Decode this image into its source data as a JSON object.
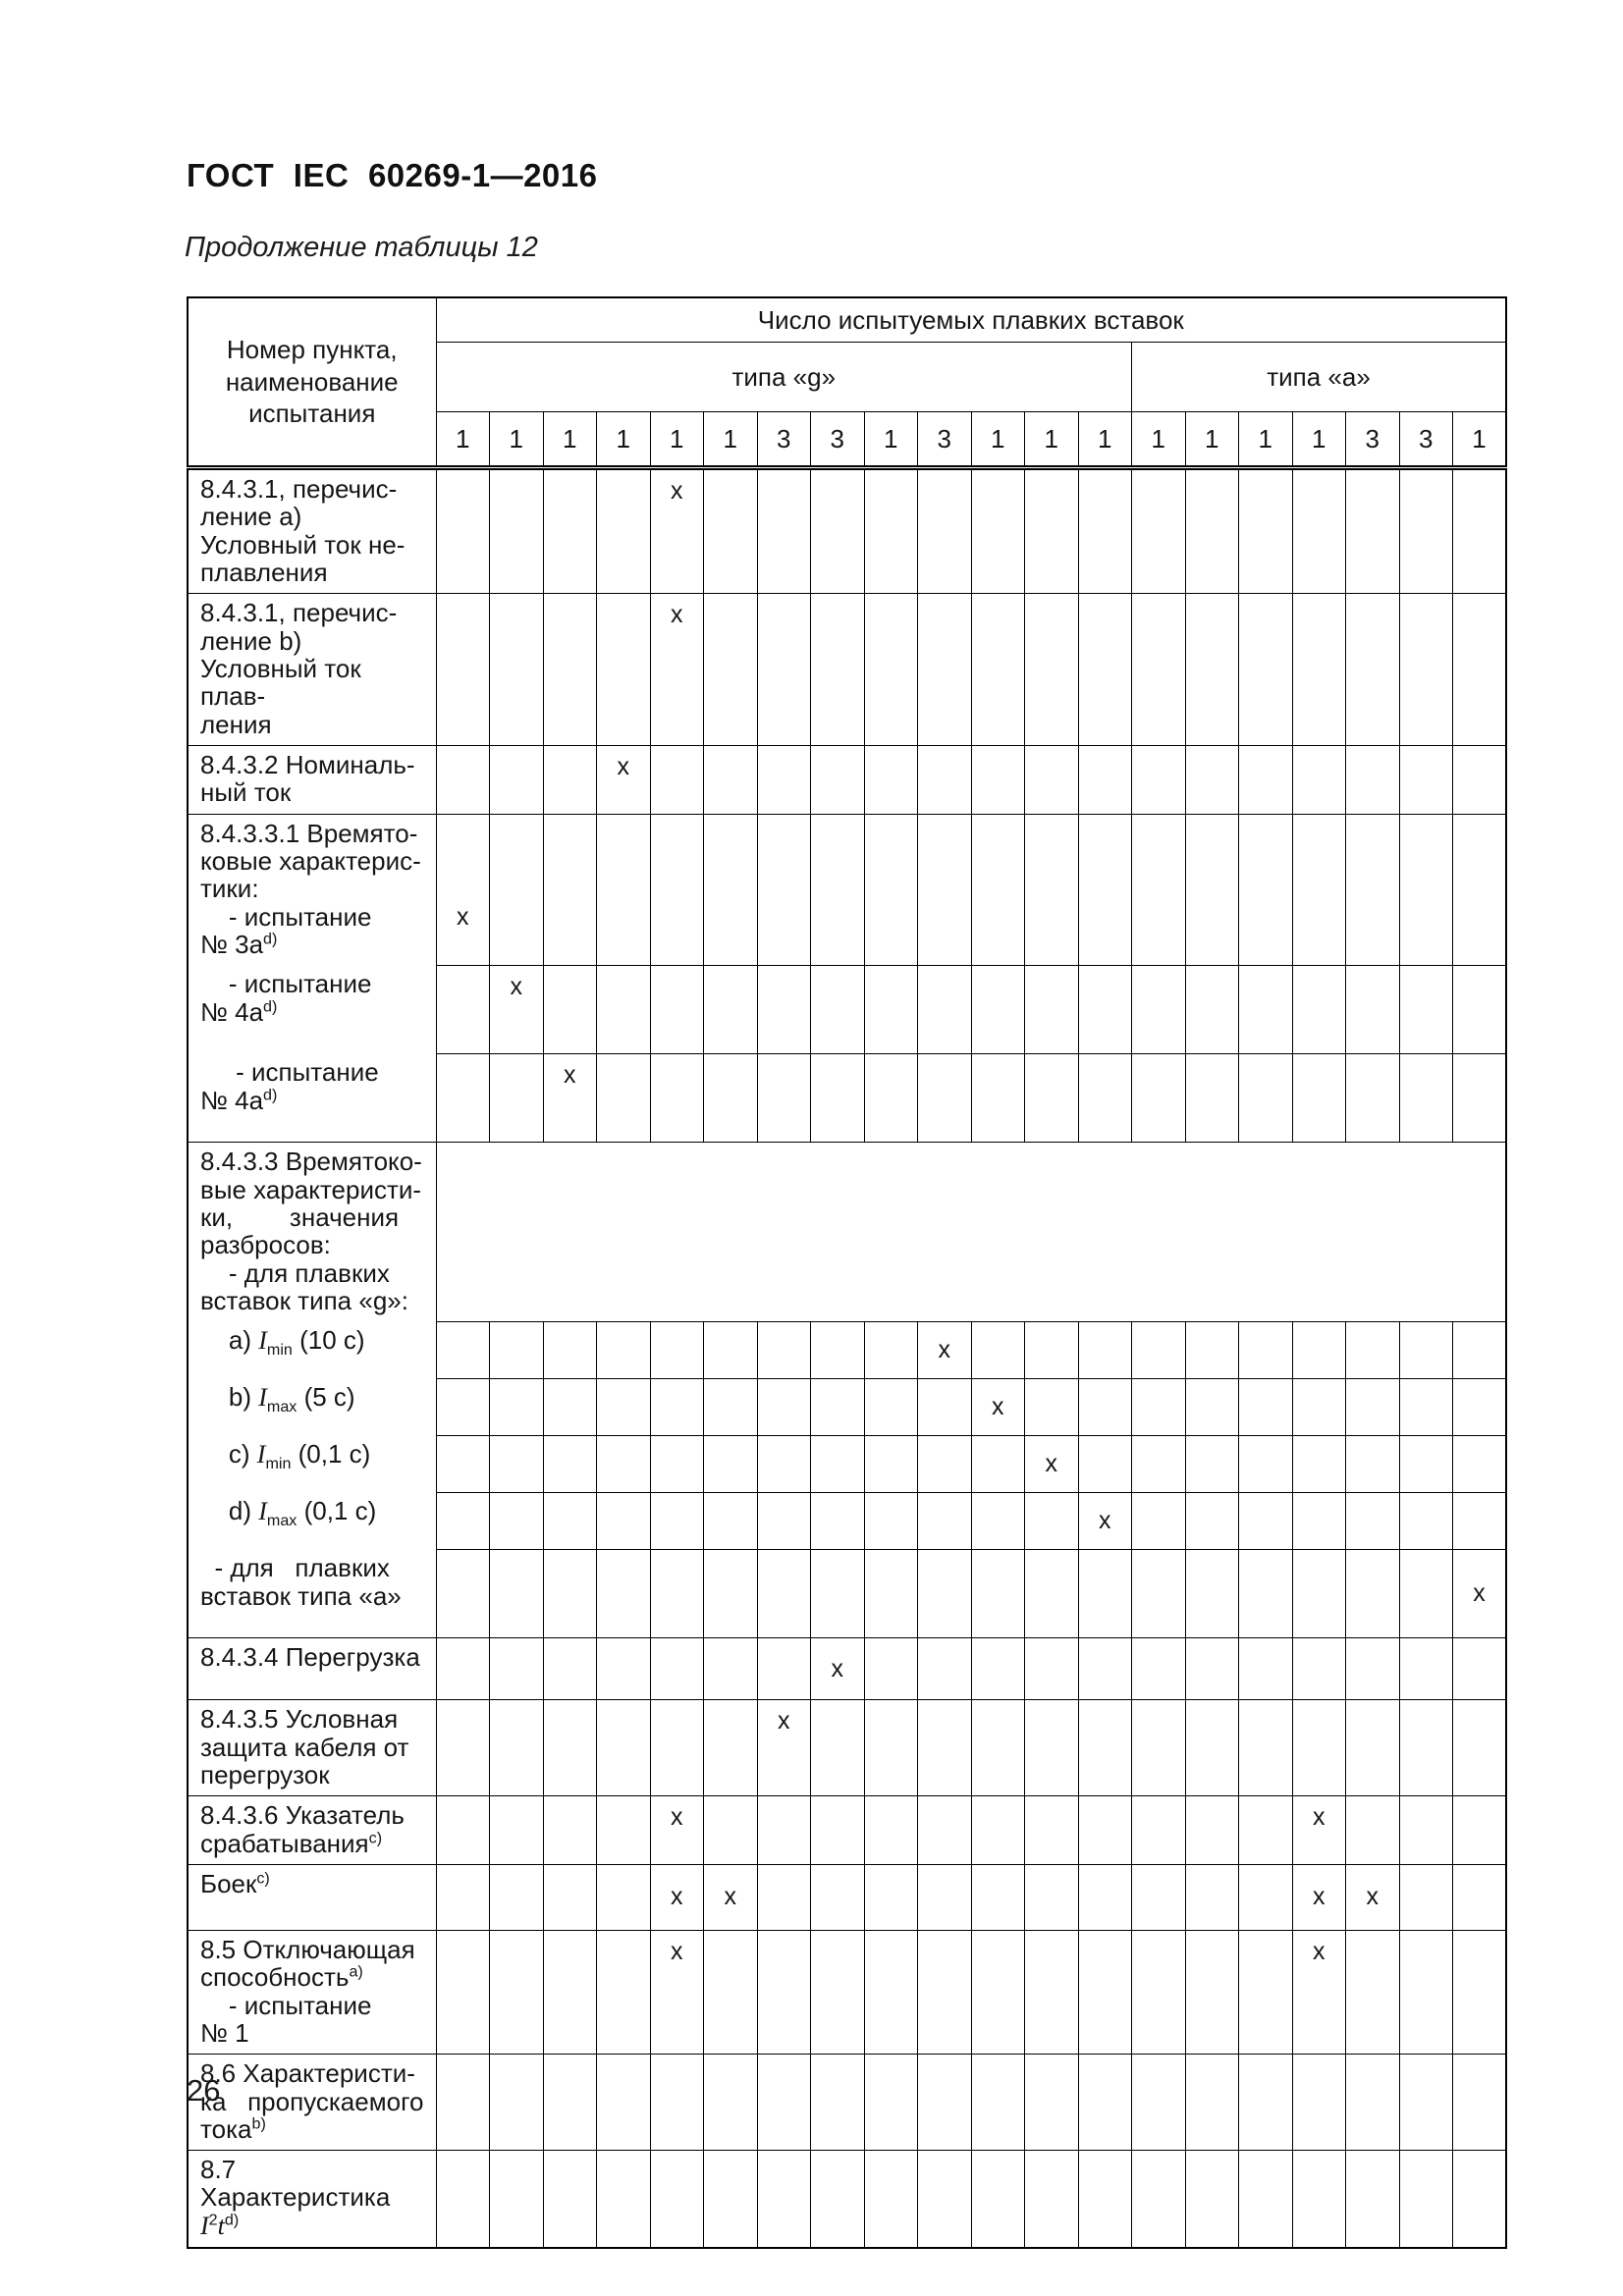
{
  "page": {
    "doc_title": "ГОСТ  IEC  60269-1—2016",
    "table_caption": "Продолжение таблицы 12",
    "page_number": "26"
  },
  "table": {
    "corner_header": "Номер пункта,<br>наименование<br>испытания",
    "top_header": "Число испытуемых плавких вставок",
    "group_g": "типа «g»",
    "group_a": "типа «а»",
    "group_g_span": "13",
    "group_a_span": "7",
    "counts": [
      "1",
      "1",
      "1",
      "1",
      "1",
      "1",
      "3",
      "3",
      "1",
      "3",
      "1",
      "1",
      "1",
      "1",
      "1",
      "1",
      "1",
      "3",
      "3",
      "1"
    ],
    "mark": "x",
    "rows": [
      {
        "label": "8.4.3.1,  перечис-<br>ление a)<br>Условный  ток  не-<br>плавления",
        "marks": [
          5
        ]
      },
      {
        "label": "8.4.3.1,  перечис-<br>ление b)<br>Условный ток плав-<br>ления",
        "marks": [
          5
        ]
      },
      {
        "label": "8.4.3.2  Номиналь-<br>ный ток",
        "marks": [
          4
        ]
      },
      {
        "label": "8.4.3.3.1  Времято-<br>ковые  характерис-<br>тики:<br>&nbsp;&nbsp;&nbsp;&nbsp;-  испытание<br>№ 3a<sup>d)</sup>",
        "marks": [
          1
        ]
      },
      {
        "label": "&nbsp;&nbsp;&nbsp;&nbsp;-  испытание<br>№ 4a<sup>d)</sup>",
        "marks": [
          2
        ]
      },
      {
        "label": "&nbsp;&nbsp;&nbsp;&nbsp;&nbsp;-  испытание<br>№ 4a<sup>d)</sup>",
        "marks": [
          3
        ]
      },
      {
        "label": "8.4.3.3  Времятоко-<br>вые  характеристи-<br>ки,&nbsp;&nbsp;&nbsp;&nbsp;&nbsp;&nbsp;&nbsp;&nbsp;значения<br>разбросов:<br>&nbsp;&nbsp;&nbsp;&nbsp;-  для  плавких<br>вставок типа «g»:",
        "marks": [],
        "merged_empty": true
      },
      {
        "label": "&nbsp;&nbsp;&nbsp;&nbsp;a)  <i>I</i><sub>min</sub> (10 с)",
        "marks": [
          10
        ]
      },
      {
        "label": "&nbsp;&nbsp;&nbsp;&nbsp;b)  <i>I</i><sub>max</sub> (5 с)",
        "marks": [
          11
        ]
      },
      {
        "label": "&nbsp;&nbsp;&nbsp;&nbsp;c)  <i>I</i><sub>min</sub> (0,1 с)",
        "marks": [
          12
        ]
      },
      {
        "label": "&nbsp;&nbsp;&nbsp;&nbsp;d)  <i>I</i><sub>max</sub> (0,1 с)",
        "marks": [
          13
        ]
      },
      {
        "label": "&nbsp;&nbsp;-  для&nbsp;&nbsp;&nbsp;плавких<br>вставок типа «а»",
        "marks": [
          20
        ]
      },
      {
        "label": "8.4.3.4  Перегрузка",
        "marks": [
          8
        ]
      },
      {
        "label": "8.4.3.5  Условная<br>защита  кабеля  от<br>перегрузок",
        "marks": [
          7
        ]
      },
      {
        "label": "8.4.3.6  Указатель<br>срабатывания<sup>c)</sup>",
        "marks": [
          5,
          17
        ]
      },
      {
        "label": "Боек<sup>c)</sup>",
        "marks": [
          5,
          6,
          17,
          18
        ]
      },
      {
        "label": "8.5  Отключающая<br>способность<sup>a)</sup><br>&nbsp;&nbsp;&nbsp;&nbsp;-  испытание<br>№ 1",
        "marks": [
          5,
          17
        ]
      },
      {
        "label": "8.6  Характеристи-<br>ка&nbsp;&nbsp;&nbsp;пропускаемого<br>тока<sup>b)</sup>",
        "marks": []
      },
      {
        "label": "8.7 Характеристика<br><i>I</i><sup>2</sup><i>t</i><sup>d)</sup>",
        "marks": []
      }
    ]
  }
}
